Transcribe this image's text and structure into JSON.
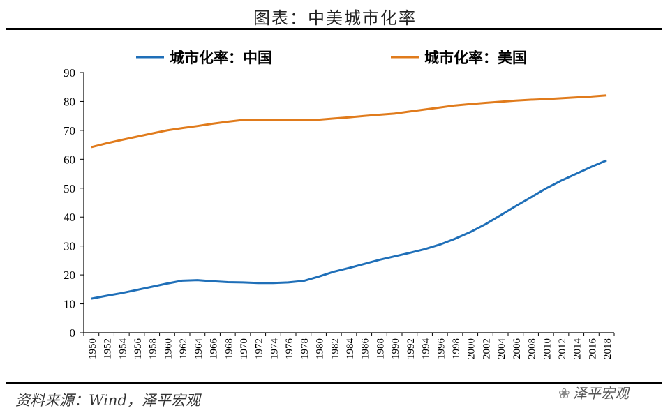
{
  "header": {
    "title": "图表：中美城市化率"
  },
  "footer": {
    "source": "资料来源：Wind，泽平宏观",
    "watermark": "泽平宏观"
  },
  "colors": {
    "china": "#1f6fb8",
    "usa": "#e07b1c",
    "axis": "#000000"
  },
  "chart_data": {
    "type": "line",
    "title": "图表：中美城市化率",
    "xlabel": "",
    "ylabel": "",
    "ylim": [
      0,
      90
    ],
    "yticks": [
      0,
      10,
      20,
      30,
      40,
      50,
      60,
      70,
      80,
      90
    ],
    "x": [
      1950,
      1952,
      1954,
      1956,
      1958,
      1960,
      1962,
      1964,
      1966,
      1968,
      1970,
      1972,
      1974,
      1976,
      1978,
      1980,
      1982,
      1984,
      1986,
      1988,
      1990,
      1992,
      1994,
      1996,
      1998,
      2000,
      2002,
      2004,
      2006,
      2008,
      2010,
      2012,
      2014,
      2016,
      2018
    ],
    "legend_position": "top",
    "series": [
      {
        "name": "城市化率：中国",
        "color": "#1f6fb8",
        "values": [
          11.8,
          12.8,
          13.7,
          14.8,
          15.9,
          17.0,
          18.0,
          18.2,
          17.8,
          17.5,
          17.4,
          17.2,
          17.2,
          17.4,
          17.9,
          19.4,
          21.1,
          22.4,
          23.8,
          25.2,
          26.4,
          27.6,
          28.9,
          30.5,
          32.5,
          34.8,
          37.5,
          40.6,
          43.8,
          46.8,
          49.9,
          52.6,
          55.0,
          57.4,
          59.6
        ]
      },
      {
        "name": "城市化率：美国",
        "color": "#e07b1c",
        "values": [
          64.2,
          65.5,
          66.7,
          67.8,
          68.9,
          70.0,
          70.8,
          71.5,
          72.3,
          73.0,
          73.6,
          73.7,
          73.7,
          73.7,
          73.7,
          73.7,
          74.1,
          74.5,
          75.0,
          75.4,
          75.8,
          76.5,
          77.2,
          77.9,
          78.6,
          79.1,
          79.5,
          79.9,
          80.3,
          80.6,
          80.8,
          81.1,
          81.4,
          81.7,
          82.1
        ]
      }
    ]
  }
}
